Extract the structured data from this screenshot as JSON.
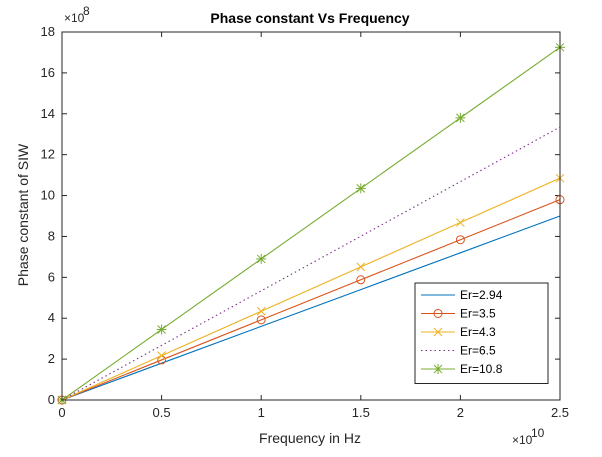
{
  "chart_data": {
    "type": "line",
    "title": "Phase constant Vs Frequency",
    "xlabel": "Frequency in Hz",
    "ylabel": "Phase constant of SIW",
    "x_exponent_base": "×10",
    "x_exponent_power": "10",
    "y_exponent_base": "×10",
    "y_exponent_power": "8",
    "xlim": [
      0,
      2.5
    ],
    "ylim": [
      0,
      18
    ],
    "xticks": [
      0,
      0.5,
      1,
      1.5,
      2,
      2.5
    ],
    "xtick_labels": [
      "0",
      "0.5",
      "1",
      "1.5",
      "2",
      "2.5"
    ],
    "yticks": [
      0,
      2,
      4,
      6,
      8,
      10,
      12,
      14,
      16,
      18
    ],
    "ytick_labels": [
      "0",
      "2",
      "4",
      "6",
      "8",
      "10",
      "12",
      "14",
      "16",
      "18"
    ],
    "grid": false,
    "legend_position": "bottom-right",
    "x": [
      0,
      0.5,
      1,
      1.5,
      2,
      2.5
    ],
    "series": [
      {
        "name": "Er=2.94",
        "color": "#0072BD",
        "marker": "none",
        "dash": "solid",
        "values": [
          0,
          1.8,
          3.6,
          5.4,
          7.2,
          9.0
        ]
      },
      {
        "name": "Er=3.5",
        "color": "#D95319",
        "marker": "circle",
        "dash": "solid",
        "values": [
          0,
          1.96,
          3.92,
          5.88,
          7.84,
          9.8
        ]
      },
      {
        "name": "Er=4.3",
        "color": "#EDB120",
        "marker": "x",
        "dash": "solid",
        "values": [
          0,
          2.17,
          4.34,
          6.51,
          8.68,
          10.85
        ]
      },
      {
        "name": "Er=6.5",
        "color": "#7E2F8E",
        "marker": "none",
        "dash": "dotted",
        "values": [
          0,
          2.67,
          5.34,
          8.01,
          10.68,
          13.35
        ]
      },
      {
        "name": "Er=10.8",
        "color": "#77AC30",
        "marker": "asterisk",
        "dash": "solid",
        "values": [
          0,
          3.45,
          6.9,
          10.35,
          13.8,
          17.25
        ]
      }
    ]
  }
}
